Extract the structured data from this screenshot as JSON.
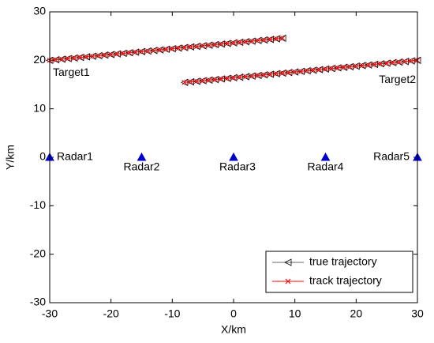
{
  "chart_data": {
    "type": "trajectory",
    "xlabel": "X/km",
    "ylabel": "Y/km",
    "xlim": [
      -30,
      30
    ],
    "ylim": [
      -30,
      30
    ],
    "xticks": [
      -30,
      -20,
      -10,
      0,
      10,
      20,
      30
    ],
    "yticks": [
      -30,
      -20,
      -10,
      0,
      10,
      20,
      30
    ],
    "legend_position": "lower right",
    "radar_color": "#0000cc",
    "radars": [
      {
        "label": "Radar1",
        "x": -30,
        "y": 0
      },
      {
        "label": "Radar2",
        "x": -15,
        "y": 0
      },
      {
        "label": "Radar3",
        "x": 0,
        "y": 0
      },
      {
        "label": "Radar4",
        "x": 15,
        "y": 0
      },
      {
        "label": "Radar5",
        "x": 30,
        "y": 0
      }
    ],
    "target_labels": [
      "Target1",
      "Target2"
    ],
    "series": [
      {
        "name": "true trajectory",
        "color": "#000000",
        "marker": "triangle-left",
        "targets": [
          {
            "x": [
              -30,
              -29,
              -28,
              -27,
              -26,
              -25,
              -24,
              -23,
              -22,
              -21,
              -20,
              -19,
              -18,
              -17,
              -16,
              -15,
              -14,
              -13,
              -12,
              -11,
              -10,
              -9,
              -8,
              -7,
              -6,
              -5,
              -4,
              -3,
              -2,
              -1,
              0,
              1,
              2,
              3,
              4,
              5,
              6,
              7,
              8
            ],
            "values": [
              20,
              20.12,
              20.24,
              20.36,
              20.48,
              20.6,
              20.72,
              20.84,
              20.96,
              21.08,
              21.2,
              21.32,
              21.44,
              21.56,
              21.68,
              21.8,
              21.92,
              22.04,
              22.16,
              22.28,
              22.4,
              22.52,
              22.64,
              22.76,
              22.88,
              23,
              23.12,
              23.24,
              23.36,
              23.48,
              23.6,
              23.72,
              23.84,
              23.96,
              24.08,
              24.2,
              24.32,
              24.44,
              24.56
            ]
          },
          {
            "x": [
              30,
              29,
              28,
              27,
              26,
              25,
              24,
              23,
              22,
              21,
              20,
              19,
              18,
              17,
              16,
              15,
              14,
              13,
              12,
              11,
              10,
              9,
              8,
              7,
              6,
              5,
              4,
              3,
              2,
              1,
              0,
              -1,
              -2,
              -3,
              -4,
              -5,
              -6,
              -7,
              -8
            ],
            "values": [
              20,
              19.88,
              19.76,
              19.64,
              19.52,
              19.4,
              19.28,
              19.16,
              19.04,
              18.92,
              18.8,
              18.68,
              18.56,
              18.44,
              18.32,
              18.2,
              18.08,
              17.96,
              17.84,
              17.72,
              17.6,
              17.48,
              17.36,
              17.24,
              17.12,
              17,
              16.88,
              16.76,
              16.64,
              16.52,
              16.4,
              16.28,
              16.16,
              16.04,
              15.92,
              15.8,
              15.68,
              15.56,
              15.44
            ]
          }
        ]
      },
      {
        "name": "track trajectory",
        "color": "#ff0000",
        "marker": "x",
        "targets": [
          {
            "x": [
              -30,
              -29,
              -28,
              -27,
              -26,
              -25,
              -24,
              -23,
              -22,
              -21,
              -20,
              -19,
              -18,
              -17,
              -16,
              -15,
              -14,
              -13,
              -12,
              -11,
              -10,
              -9,
              -8,
              -7,
              -6,
              -5,
              -4,
              -3,
              -2,
              -1,
              0,
              1,
              2,
              3,
              4,
              5,
              6,
              7,
              8
            ],
            "values": [
              20,
              20.12,
              20.24,
              20.36,
              20.48,
              20.6,
              20.72,
              20.84,
              20.96,
              21.08,
              21.2,
              21.32,
              21.44,
              21.56,
              21.68,
              21.8,
              21.92,
              22.04,
              22.16,
              22.28,
              22.4,
              22.52,
              22.64,
              22.76,
              22.88,
              23,
              23.12,
              23.24,
              23.36,
              23.48,
              23.6,
              23.72,
              23.84,
              23.96,
              24.08,
              24.2,
              24.32,
              24.44,
              24.56
            ]
          },
          {
            "x": [
              30,
              29,
              28,
              27,
              26,
              25,
              24,
              23,
              22,
              21,
              20,
              19,
              18,
              17,
              16,
              15,
              14,
              13,
              12,
              11,
              10,
              9,
              8,
              7,
              6,
              5,
              4,
              3,
              2,
              1,
              0,
              -1,
              -2,
              -3,
              -4,
              -5,
              -6,
              -7,
              -8
            ],
            "values": [
              20,
              19.88,
              19.76,
              19.64,
              19.52,
              19.4,
              19.28,
              19.16,
              19.04,
              18.92,
              18.8,
              18.68,
              18.56,
              18.44,
              18.32,
              18.2,
              18.08,
              17.96,
              17.84,
              17.72,
              17.6,
              17.48,
              17.36,
              17.24,
              17.12,
              17,
              16.88,
              16.76,
              16.64,
              16.52,
              16.4,
              16.28,
              16.16,
              16.04,
              15.92,
              15.8,
              15.68,
              15.56,
              15.44
            ]
          }
        ]
      }
    ]
  }
}
